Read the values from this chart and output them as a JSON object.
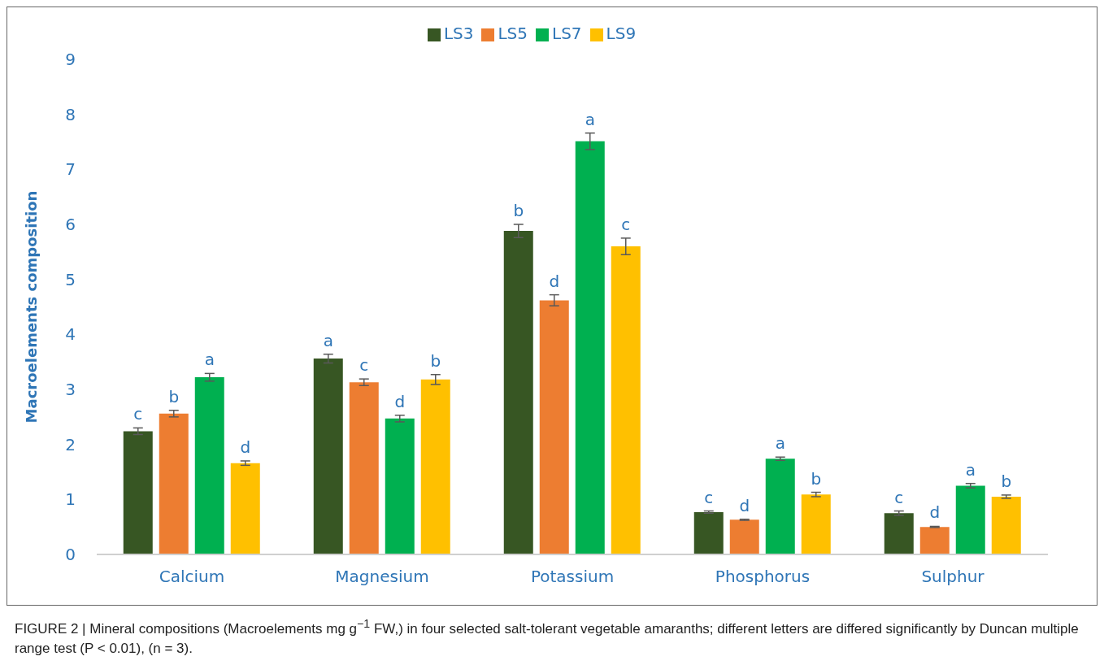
{
  "chart_data": {
    "type": "bar",
    "ylabel": "Macroelements composition",
    "categories": [
      "Calcium",
      "Magnesium",
      "Potassium",
      "Phosphorus",
      "Sulphur"
    ],
    "series": [
      {
        "name": "LS3",
        "color": "#375623",
        "values": [
          2.24,
          3.56,
          5.88,
          0.77,
          0.75
        ],
        "errors": [
          0.06,
          0.08,
          0.12,
          0.02,
          0.04
        ],
        "value_labels": [
          "c",
          "a",
          "b",
          "c",
          "c"
        ]
      },
      {
        "name": "LS5",
        "color": "#ed7d31",
        "values": [
          2.56,
          3.13,
          4.62,
          0.63,
          0.5
        ],
        "errors": [
          0.06,
          0.06,
          0.1,
          0.01,
          0.01
        ],
        "value_labels": [
          "b",
          "c",
          "d",
          "d",
          "d"
        ]
      },
      {
        "name": "LS7",
        "color": "#00b050",
        "values": [
          3.22,
          2.47,
          7.51,
          1.74,
          1.25
        ],
        "errors": [
          0.07,
          0.06,
          0.15,
          0.03,
          0.04
        ],
        "value_labels": [
          "a",
          "d",
          "a",
          "a",
          "a"
        ]
      },
      {
        "name": "LS9",
        "color": "#ffc000",
        "values": [
          1.66,
          3.18,
          5.6,
          1.09,
          1.05
        ],
        "errors": [
          0.04,
          0.09,
          0.15,
          0.04,
          0.03
        ],
        "value_labels": [
          "d",
          "b",
          "c",
          "b",
          "b"
        ]
      }
    ],
    "ylim": [
      0,
      9
    ],
    "yticks": [
      0,
      1,
      2,
      3,
      4,
      5,
      6,
      7,
      8,
      9
    ],
    "grid": false,
    "legend": "top",
    "annotations": [
      "FIGURE 2 | Mineral compositions (Macroelements mg g$^{−1}$ FW,) in four selected salt-tolerant vegetable amaranths; different letters are differed significantly by Duncan multiple range test (P < 0.01), (n = 3)."
    ]
  }
}
